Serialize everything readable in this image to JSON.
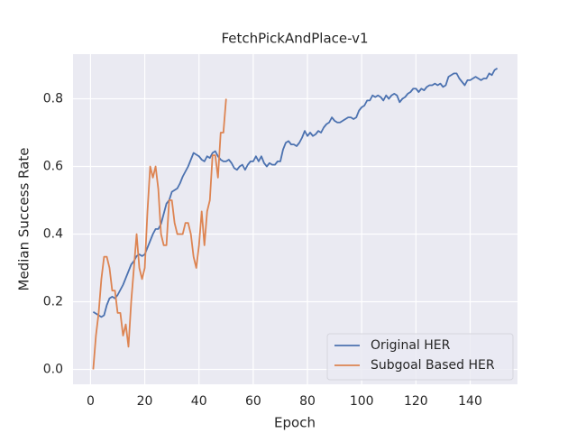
{
  "chart_data": {
    "type": "line",
    "title": "FetchPickAndPlace-v1",
    "x_label": "Epoch",
    "y_label": "Median Success Rate",
    "x": [
      1,
      2,
      3,
      4,
      5,
      6,
      7,
      8,
      9,
      10,
      11,
      12,
      13,
      14,
      15,
      16,
      17,
      18,
      19,
      20,
      21,
      22,
      23,
      24,
      25,
      26,
      27,
      28,
      29,
      30,
      31,
      32,
      33,
      34,
      35,
      36,
      37,
      38,
      39,
      40,
      41,
      42,
      43,
      44,
      45,
      46,
      47,
      48,
      49,
      50,
      51,
      52,
      53,
      54,
      55,
      56,
      57,
      58,
      59,
      60,
      61,
      62,
      63,
      64,
      65,
      66,
      67,
      68,
      69,
      70,
      71,
      72,
      73,
      74,
      75,
      76,
      77,
      78,
      79,
      80,
      81,
      82,
      83,
      84,
      85,
      86,
      87,
      88,
      89,
      90,
      91,
      92,
      93,
      94,
      95,
      96,
      97,
      98,
      99,
      100,
      101,
      102,
      103,
      104,
      105,
      106,
      107,
      108,
      109,
      110,
      111,
      112,
      113,
      114,
      115,
      116,
      117,
      118,
      119,
      120,
      121,
      122,
      123,
      124,
      125,
      126,
      127,
      128,
      129,
      130,
      131,
      132,
      133,
      134,
      135,
      136,
      137,
      138,
      139,
      140,
      141,
      142,
      143,
      144,
      145,
      146,
      147,
      148,
      149,
      150
    ],
    "series": [
      {
        "name": "Original HER",
        "color": "#4c72b0",
        "values": [
          0.17,
          0.165,
          0.16,
          0.155,
          0.16,
          0.19,
          0.21,
          0.215,
          0.21,
          0.22,
          0.235,
          0.25,
          0.27,
          0.29,
          0.31,
          0.32,
          0.335,
          0.34,
          0.335,
          0.34,
          0.36,
          0.38,
          0.4,
          0.415,
          0.415,
          0.43,
          0.46,
          0.49,
          0.5,
          0.525,
          0.53,
          0.535,
          0.55,
          0.57,
          0.585,
          0.6,
          0.62,
          0.64,
          0.635,
          0.63,
          0.62,
          0.615,
          0.63,
          0.625,
          0.64,
          0.645,
          0.63,
          0.62,
          0.615,
          0.615,
          0.62,
          0.61,
          0.595,
          0.59,
          0.6,
          0.605,
          0.59,
          0.605,
          0.615,
          0.615,
          0.63,
          0.615,
          0.63,
          0.61,
          0.6,
          0.61,
          0.605,
          0.605,
          0.615,
          0.615,
          0.65,
          0.67,
          0.675,
          0.665,
          0.665,
          0.66,
          0.67,
          0.685,
          0.705,
          0.69,
          0.7,
          0.69,
          0.695,
          0.705,
          0.7,
          0.715,
          0.725,
          0.73,
          0.745,
          0.735,
          0.73,
          0.73,
          0.735,
          0.74,
          0.745,
          0.745,
          0.74,
          0.745,
          0.765,
          0.775,
          0.78,
          0.795,
          0.795,
          0.81,
          0.805,
          0.81,
          0.805,
          0.795,
          0.81,
          0.8,
          0.81,
          0.815,
          0.81,
          0.79,
          0.8,
          0.805,
          0.815,
          0.82,
          0.83,
          0.83,
          0.82,
          0.83,
          0.825,
          0.835,
          0.84,
          0.84,
          0.845,
          0.84,
          0.845,
          0.835,
          0.84,
          0.865,
          0.87,
          0.875,
          0.875,
          0.86,
          0.85,
          0.84,
          0.855,
          0.855,
          0.86,
          0.865,
          0.86,
          0.855,
          0.86,
          0.86,
          0.875,
          0.87,
          0.885,
          0.89
        ]
      },
      {
        "name": "Subgoal Based HER",
        "color": "#dd8452",
        "x": [
          1,
          2,
          3,
          4,
          5,
          6,
          7,
          8,
          9,
          10,
          11,
          12,
          13,
          14,
          15,
          16,
          17,
          18,
          19,
          20,
          21,
          22,
          23,
          24,
          25,
          26,
          27,
          28,
          29,
          30,
          31,
          32,
          33,
          34,
          35,
          36,
          37,
          38,
          39,
          40,
          41,
          42,
          43,
          44,
          45,
          46,
          47,
          48,
          49,
          50
        ],
        "values": [
          0.0,
          0.1,
          0.167,
          0.267,
          0.333,
          0.333,
          0.3,
          0.233,
          0.233,
          0.167,
          0.167,
          0.1,
          0.133,
          0.067,
          0.2,
          0.3,
          0.4,
          0.3,
          0.267,
          0.3,
          0.467,
          0.6,
          0.567,
          0.6,
          0.533,
          0.4,
          0.367,
          0.367,
          0.5,
          0.5,
          0.433,
          0.4,
          0.4,
          0.4,
          0.433,
          0.433,
          0.4,
          0.333,
          0.3,
          0.367,
          0.467,
          0.367,
          0.467,
          0.5,
          0.633,
          0.633,
          0.567,
          0.7,
          0.7,
          0.8
        ]
      }
    ],
    "xlim": [
      -6.45,
      157.45
    ],
    "ylim": [
      -0.044,
      0.932
    ],
    "xticks": [
      0,
      20,
      40,
      60,
      80,
      100,
      120,
      140
    ],
    "yticks": [
      {
        "value": 0,
        "label": "0.0"
      },
      0.2,
      0.4,
      0.6,
      0.8
    ],
    "grid": true,
    "legend": "lower right"
  }
}
